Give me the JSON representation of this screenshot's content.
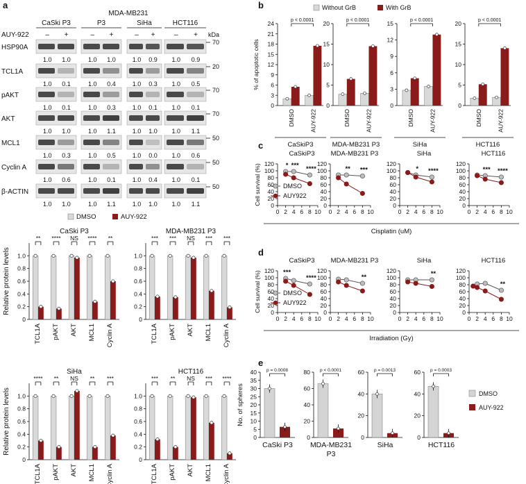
{
  "panel_letters": {
    "a": "a",
    "b": "b",
    "c": "c",
    "d": "d",
    "e": "e"
  },
  "colors": {
    "dmso": "#d9d9d9",
    "treated": "#8b1a1a",
    "line_dmso": "#bdbdbd",
    "line_treated": "#8b1a1a",
    "bar_grey": "#d4d4d4"
  },
  "blot": {
    "cell_lines": [
      "CaSki P3",
      "MDA-MB231 P3",
      "SiHa",
      "HCT116"
    ],
    "treatment_label": "AUY-922",
    "minus": "–",
    "plus": "+",
    "kda_label": "kDa",
    "proteins": [
      {
        "name": "HSP90A",
        "kda": "70",
        "values": [
          [
            "1.0",
            "1.0"
          ],
          [
            "1.0",
            "1.0"
          ],
          [
            "1.0",
            "0.9"
          ],
          [
            "1.0",
            "0.9"
          ]
        ]
      },
      {
        "name": "TCL1A",
        "kda": "20",
        "values": [
          [
            "1.0",
            "0.1"
          ],
          [
            "1.0",
            "0.4"
          ],
          [
            "1.0",
            "0.3"
          ],
          [
            "1.0",
            "0.5"
          ]
        ]
      },
      {
        "name": "pAKT",
        "kda": "70",
        "values": [
          [
            "1.0",
            "0.1"
          ],
          [
            "1.0",
            "0.3"
          ],
          [
            "1.0",
            "0.1"
          ],
          [
            "1.0",
            "0.1"
          ]
        ]
      },
      {
        "name": "AKT",
        "kda": "70",
        "values": [
          [
            "1.0",
            "1.0"
          ],
          [
            "1.0",
            "1.1"
          ],
          [
            "1.0",
            "1.0"
          ],
          [
            "1.0",
            "1.1"
          ]
        ]
      },
      {
        "name": "MCL1",
        "kda": "50",
        "values": [
          [
            "1.0",
            "0.3"
          ],
          [
            "1.0",
            "0.5"
          ],
          [
            "1.0",
            "0.0"
          ],
          [
            "1.0",
            "0.6"
          ]
        ]
      },
      {
        "name": "Cyclin A",
        "kda": "50",
        "values": [
          [
            "1.0",
            "0.6"
          ],
          [
            "1.0",
            "0.1"
          ],
          [
            "1.0",
            "0.4"
          ],
          [
            "1.0",
            "0.1"
          ]
        ]
      },
      {
        "name": "β-ACTIN",
        "kda": "50",
        "values": [
          [
            "1.0",
            "1.0"
          ],
          [
            "1.0",
            "1.1"
          ],
          [
            "1.0",
            "1.0"
          ],
          [
            "1.0",
            "1.1"
          ]
        ]
      }
    ]
  },
  "chart_data": [
    {
      "id": "a_casski",
      "type": "bar",
      "title": "CaSki P3",
      "ylabel": "Relative protein levels",
      "ylim": [
        0,
        1.2
      ],
      "yticks": [
        0,
        0.2,
        0.4,
        0.6,
        0.8,
        1.0
      ],
      "categories": [
        "TCL1A",
        "pAKT",
        "AKT",
        "MCL1",
        "Cyclin A"
      ],
      "series": [
        {
          "name": "DMSO",
          "values": [
            1,
            1,
            1,
            1,
            1
          ]
        },
        {
          "name": "AUY-922",
          "values": [
            0.2,
            0.17,
            0.97,
            0.28,
            0.6
          ]
        }
      ],
      "significance": [
        "**",
        "****",
        "NS",
        "****",
        "**"
      ]
    },
    {
      "id": "a_mda",
      "type": "bar",
      "title": "MDA-MB231 P3",
      "ylabel": "",
      "ylim": [
        0,
        1.2
      ],
      "yticks": [
        0,
        0.2,
        0.4,
        0.6,
        0.8,
        1.0
      ],
      "categories": [
        "TCL1A",
        "pAKT",
        "AKT",
        "MCL1",
        "Cyclin A"
      ],
      "series": [
        {
          "name": "DMSO",
          "values": [
            1,
            1,
            1,
            1,
            1
          ]
        },
        {
          "name": "AUY-922",
          "values": [
            0.36,
            0.35,
            0.97,
            0.45,
            0.19
          ]
        }
      ],
      "significance": [
        "***",
        "***",
        "NS",
        "***",
        "***"
      ]
    },
    {
      "id": "a_siha",
      "type": "bar",
      "title": "SiHa",
      "ylabel": "Relative protein levels",
      "ylim": [
        0,
        1.2
      ],
      "yticks": [
        0,
        0.2,
        0.4,
        0.6,
        0.8,
        1.0
      ],
      "categories": [
        "TCL1A",
        "pAKT",
        "AKT",
        "MCL1",
        "Cyclin A"
      ],
      "series": [
        {
          "name": "DMSO",
          "values": [
            1,
            1,
            1,
            1,
            1
          ]
        },
        {
          "name": "AUY-922",
          "values": [
            0.3,
            0.2,
            1.08,
            0.2,
            0.38
          ]
        }
      ],
      "significance": [
        "****",
        "**",
        "NS",
        "**",
        "***"
      ]
    },
    {
      "id": "a_hct",
      "type": "bar",
      "title": "HCT116",
      "ylabel": "",
      "ylim": [
        0,
        1.2
      ],
      "yticks": [
        0,
        0.2,
        0.4,
        0.6,
        0.8,
        1.0
      ],
      "categories": [
        "TCL1A",
        "pAKT",
        "AKT",
        "MCL1",
        "Cyclin A"
      ],
      "series": [
        {
          "name": "DMSO",
          "values": [
            1,
            1,
            1,
            1,
            1
          ]
        },
        {
          "name": "AUY-922",
          "values": [
            0.32,
            0.2,
            0.98,
            0.58,
            0.1
          ]
        }
      ],
      "significance": [
        "***",
        "**",
        "NS",
        "***",
        "****"
      ]
    },
    {
      "id": "b_casski",
      "type": "bar",
      "xlabel": "CaSkiP3",
      "ylabel": "% of apoptotic cells",
      "ylim": [
        0,
        24
      ],
      "yticks": [
        0,
        3,
        6,
        9,
        12,
        15,
        18,
        21,
        24
      ],
      "categories": [
        "DMSO",
        "AUY-922"
      ],
      "series": [
        {
          "name": "Without GrB",
          "values": [
            2,
            3
          ]
        },
        {
          "name": "With GrB",
          "values": [
            5.5,
            17.5
          ]
        }
      ],
      "p_text": "p < 0.0001"
    },
    {
      "id": "b_mda",
      "type": "bar",
      "xlabel": "MDA-MB231 P3",
      "ylabel": "",
      "ylim": [
        0,
        20
      ],
      "yticks": [
        0,
        5,
        10,
        15,
        20
      ],
      "categories": [
        "DMSO",
        "AUY-922"
      ],
      "series": [
        {
          "name": "Without GrB",
          "values": [
            2.8,
            3
          ]
        },
        {
          "name": "With GrB",
          "values": [
            6.5,
            14.5
          ]
        }
      ],
      "p_text": "p < 0.0001"
    },
    {
      "id": "b_siha",
      "type": "bar",
      "xlabel": "SiHa",
      "ylabel": "",
      "ylim": [
        0,
        15
      ],
      "yticks": [
        0,
        3,
        6,
        9,
        12,
        15
      ],
      "categories": [
        "DMSO",
        "AUY-922"
      ],
      "series": [
        {
          "name": "Without GrB",
          "values": [
            2.8,
            3.5
          ]
        },
        {
          "name": "With GrB",
          "values": [
            5,
            13
          ]
        }
      ],
      "p_text": "p < 0.0001"
    },
    {
      "id": "b_hct",
      "type": "bar",
      "xlabel": "HCT116",
      "ylabel": "",
      "ylim": [
        0,
        20
      ],
      "yticks": [
        0,
        5,
        10,
        15,
        20
      ],
      "categories": [
        "DMSO",
        "AUY-922"
      ],
      "series": [
        {
          "name": "Without GrB",
          "values": [
            1.8,
            2
          ]
        },
        {
          "name": "With GrB",
          "values": [
            5.2,
            14
          ]
        }
      ],
      "p_text": "p < 0.0001"
    },
    {
      "id": "c_casski",
      "type": "line",
      "title": "CaSkiP3",
      "ylabel": "Cell survival (%)",
      "ylim": [
        0,
        120
      ],
      "yticks": [
        0,
        20,
        40,
        60,
        80,
        100,
        120
      ],
      "xlim": [
        0,
        10
      ],
      "xticks": [
        0,
        2,
        4,
        6,
        8,
        10
      ],
      "x": [
        2,
        4,
        8
      ],
      "series": [
        {
          "name": "DMSO",
          "values": [
            98,
            98,
            88
          ]
        },
        {
          "name": "AUY922",
          "values": [
            90,
            80,
            63
          ]
        }
      ],
      "significance": [
        "*",
        "***",
        "****"
      ]
    },
    {
      "id": "c_mda",
      "type": "line",
      "title": "MDA-MB231 P3",
      "ylabel": "",
      "ylim": [
        0,
        120
      ],
      "yticks": [
        0,
        20,
        40,
        60,
        80,
        100,
        120
      ],
      "xlim": [
        0,
        10
      ],
      "xticks": [
        0,
        2,
        4,
        6,
        8,
        10
      ],
      "x": [
        2,
        4,
        8
      ],
      "series": [
        {
          "name": "DMSO",
          "values": [
            88,
            88,
            85
          ]
        },
        {
          "name": "AUY922",
          "values": [
            80,
            62,
            35
          ]
        }
      ],
      "significance": [
        "",
        "**",
        "***"
      ]
    },
    {
      "id": "c_siha",
      "type": "line",
      "title": "SiHa",
      "ylabel": "",
      "ylim": [
        0,
        120
      ],
      "yticks": [
        0,
        20,
        40,
        60,
        80,
        100,
        120
      ],
      "xlim": [
        0,
        10
      ],
      "xticks": [
        0,
        2,
        4,
        6,
        8,
        10
      ],
      "x": [
        2,
        4,
        8
      ],
      "series": [
        {
          "name": "DMSO",
          "values": [
            95,
            88,
            82
          ]
        },
        {
          "name": "AUY922",
          "values": [
            95,
            82,
            68
          ]
        }
      ],
      "significance": [
        "",
        "*",
        "****"
      ]
    },
    {
      "id": "c_hct",
      "type": "line",
      "title": "HCT116",
      "ylabel": "",
      "ylim": [
        0,
        120
      ],
      "yticks": [
        0,
        20,
        40,
        60,
        80,
        100,
        120
      ],
      "xlim": [
        0,
        10
      ],
      "xticks": [
        0,
        2,
        4,
        6,
        8,
        10
      ],
      "x": [
        2,
        4,
        8
      ],
      "series": [
        {
          "name": "DMSO",
          "values": [
            88,
            86,
            82
          ]
        },
        {
          "name": "AUY922",
          "values": [
            86,
            76,
            66
          ]
        }
      ],
      "significance": [
        "",
        "***",
        "****"
      ]
    },
    {
      "id": "d_casski",
      "type": "line",
      "title": "CaSkiP3",
      "ylabel": "Cell survival (%)",
      "ylim": [
        0,
        120
      ],
      "yticks": [
        0,
        20,
        40,
        60,
        80,
        100,
        120
      ],
      "xlim": [
        0,
        10
      ],
      "xticks": [
        0,
        2,
        4,
        6,
        8,
        10
      ],
      "x": [
        2,
        4,
        8
      ],
      "series": [
        {
          "name": "DMSO",
          "values": [
            98,
            92,
            82
          ]
        },
        {
          "name": "AUY922",
          "values": [
            90,
            78,
            52
          ]
        }
      ],
      "significance": [
        "***",
        "",
        "****"
      ]
    },
    {
      "id": "d_mda",
      "type": "line",
      "title": "MDA-MB231 P3",
      "ylabel": "",
      "ylim": [
        0,
        120
      ],
      "yticks": [
        0,
        20,
        40,
        60,
        80,
        100,
        120
      ],
      "xlim": [
        0,
        10
      ],
      "xticks": [
        0,
        2,
        4,
        6,
        8,
        10
      ],
      "x": [
        2,
        4,
        8
      ],
      "series": [
        {
          "name": "DMSO",
          "values": [
            96,
            94,
            84
          ]
        },
        {
          "name": "AUY922",
          "values": [
            88,
            78,
            62
          ]
        }
      ],
      "significance": [
        "",
        "",
        "**"
      ]
    },
    {
      "id": "d_siha",
      "type": "line",
      "title": "SiHa",
      "ylabel": "",
      "ylim": [
        0,
        120
      ],
      "yticks": [
        0,
        20,
        40,
        60,
        80,
        100,
        120
      ],
      "xlim": [
        0,
        10
      ],
      "xticks": [
        0,
        2,
        4,
        6,
        8,
        10
      ],
      "x": [
        2,
        4,
        8
      ],
      "series": [
        {
          "name": "DMSO",
          "values": [
            94,
            94,
            94
          ]
        },
        {
          "name": "AUY922",
          "values": [
            88,
            84,
            75
          ]
        }
      ],
      "significance": [
        "",
        "",
        "**"
      ]
    },
    {
      "id": "d_hct",
      "type": "line",
      "title": "HCT116",
      "ylabel": "",
      "ylim": [
        0,
        120
      ],
      "yticks": [
        0,
        20,
        40,
        60,
        80,
        100,
        120
      ],
      "xlim": [
        0,
        10
      ],
      "xticks": [
        0,
        2,
        4,
        6,
        8,
        10
      ],
      "x": [
        1,
        2,
        4,
        8
      ],
      "series": [
        {
          "name": "DMSO",
          "values": [
            76,
            82,
            84,
            64
          ]
        },
        {
          "name": "AUY922",
          "values": [
            76,
            72,
            62,
            38
          ]
        }
      ],
      "significance": [
        "",
        "",
        "",
        "**"
      ]
    },
    {
      "id": "e_casski",
      "type": "bar",
      "xlabel": "CaSki P3",
      "ylabel": "No. of spheres",
      "ylim": [
        0,
        40
      ],
      "yticks": [
        0,
        5,
        10,
        15,
        20,
        25,
        30,
        35,
        40
      ],
      "categories": [
        "DMSO",
        "AUY-922"
      ],
      "values": [
        30,
        6.5
      ],
      "p_text": "p = 0.0008"
    },
    {
      "id": "e_mda",
      "type": "bar",
      "xlabel": "MDA-MB231 P3",
      "ylabel": "",
      "ylim": [
        0,
        80
      ],
      "yticks": [
        0,
        20,
        40,
        60,
        80
      ],
      "categories": [
        "DMSO",
        "AUY-922"
      ],
      "values": [
        66,
        11
      ],
      "p_text": "p < 0.0001"
    },
    {
      "id": "e_siha",
      "type": "bar",
      "xlabel": "SiHa",
      "ylabel": "",
      "ylim": [
        0,
        60
      ],
      "yticks": [
        0,
        20,
        40,
        60
      ],
      "categories": [
        "DMSO",
        "AUY-922"
      ],
      "values": [
        40,
        4
      ],
      "p_text": "p = 0.0013"
    },
    {
      "id": "e_hct",
      "type": "bar",
      "xlabel": "HCT116",
      "ylabel": "",
      "ylim": [
        0,
        60
      ],
      "yticks": [
        0,
        20,
        40,
        60
      ],
      "categories": [
        "DMSO",
        "AUY-922"
      ],
      "values": [
        47,
        4
      ],
      "p_text": "p = 0.0003"
    }
  ],
  "legends": {
    "a": [
      "DMSO",
      "AUY-922"
    ],
    "b": [
      "Without GrB",
      "With GrB"
    ],
    "cd": [
      "DMSO",
      "AUY922"
    ],
    "e": [
      "DMSO",
      "AUY-922"
    ]
  },
  "axis_titles": {
    "c": "Cisplatin (uM)",
    "d": "Irradiation (Gy)",
    "b_tick": "DMSO"
  }
}
